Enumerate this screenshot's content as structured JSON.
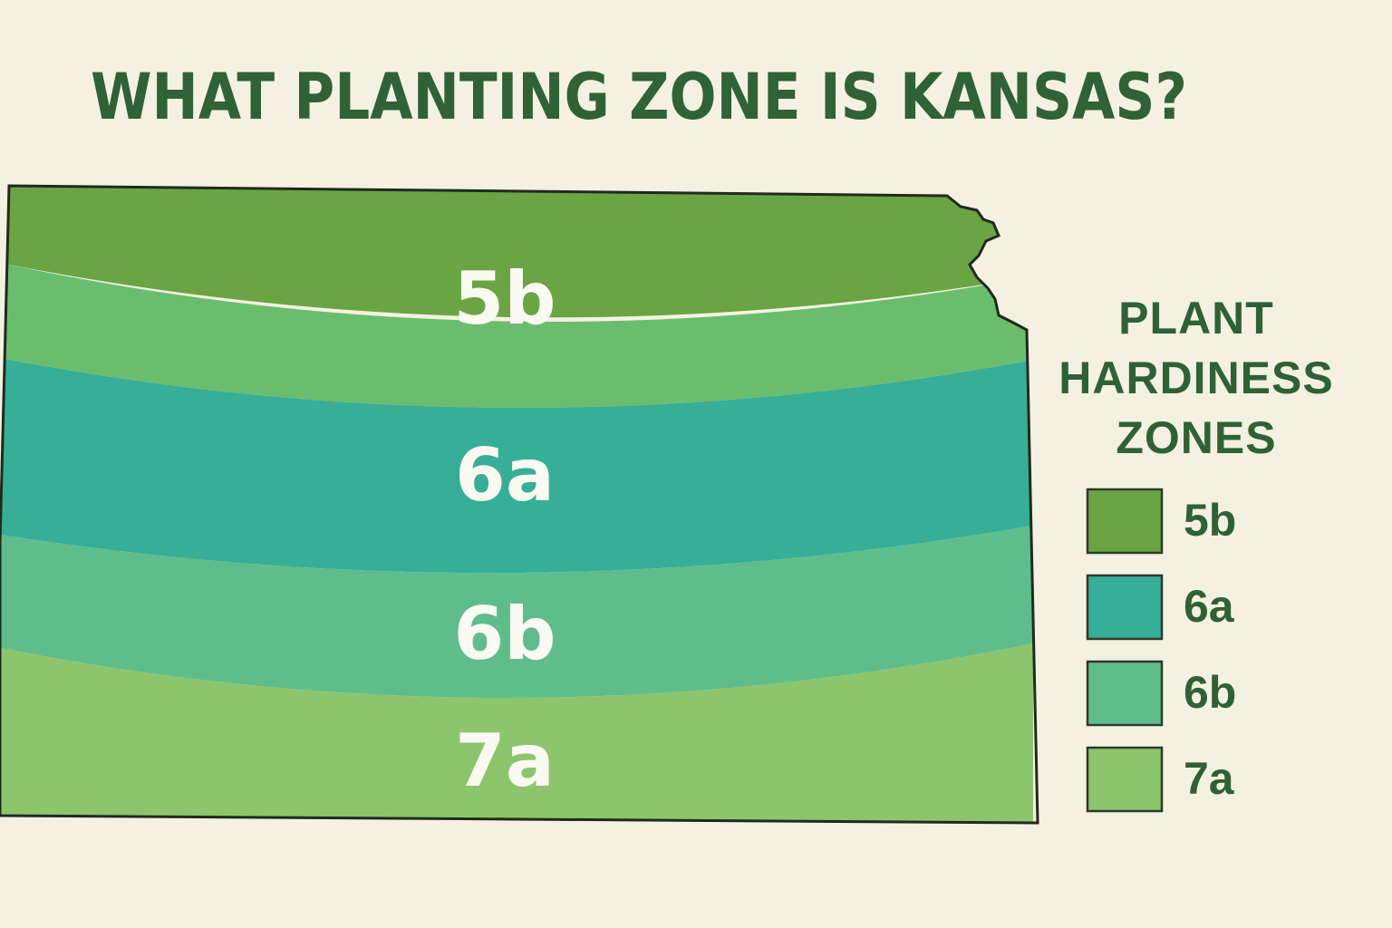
{
  "title": "WHAT PLANTING ZONE IS KANSAS?",
  "map": {
    "zones": [
      {
        "label": "5b",
        "color": "#6aa443"
      },
      {
        "label": "6a",
        "color": "#37ae97"
      },
      {
        "label": "6b",
        "color": "#5fbd8c"
      },
      {
        "label": "7a",
        "color": "#8cc56b"
      }
    ]
  },
  "legend": {
    "title": "PLANT HARDINESS ZONES",
    "items": [
      {
        "label": "5b",
        "color": "#6aa443"
      },
      {
        "label": "6a",
        "color": "#37ae97"
      },
      {
        "label": "6b",
        "color": "#5fbd8c"
      },
      {
        "label": "7a",
        "color": "#8cc56b"
      }
    ]
  }
}
